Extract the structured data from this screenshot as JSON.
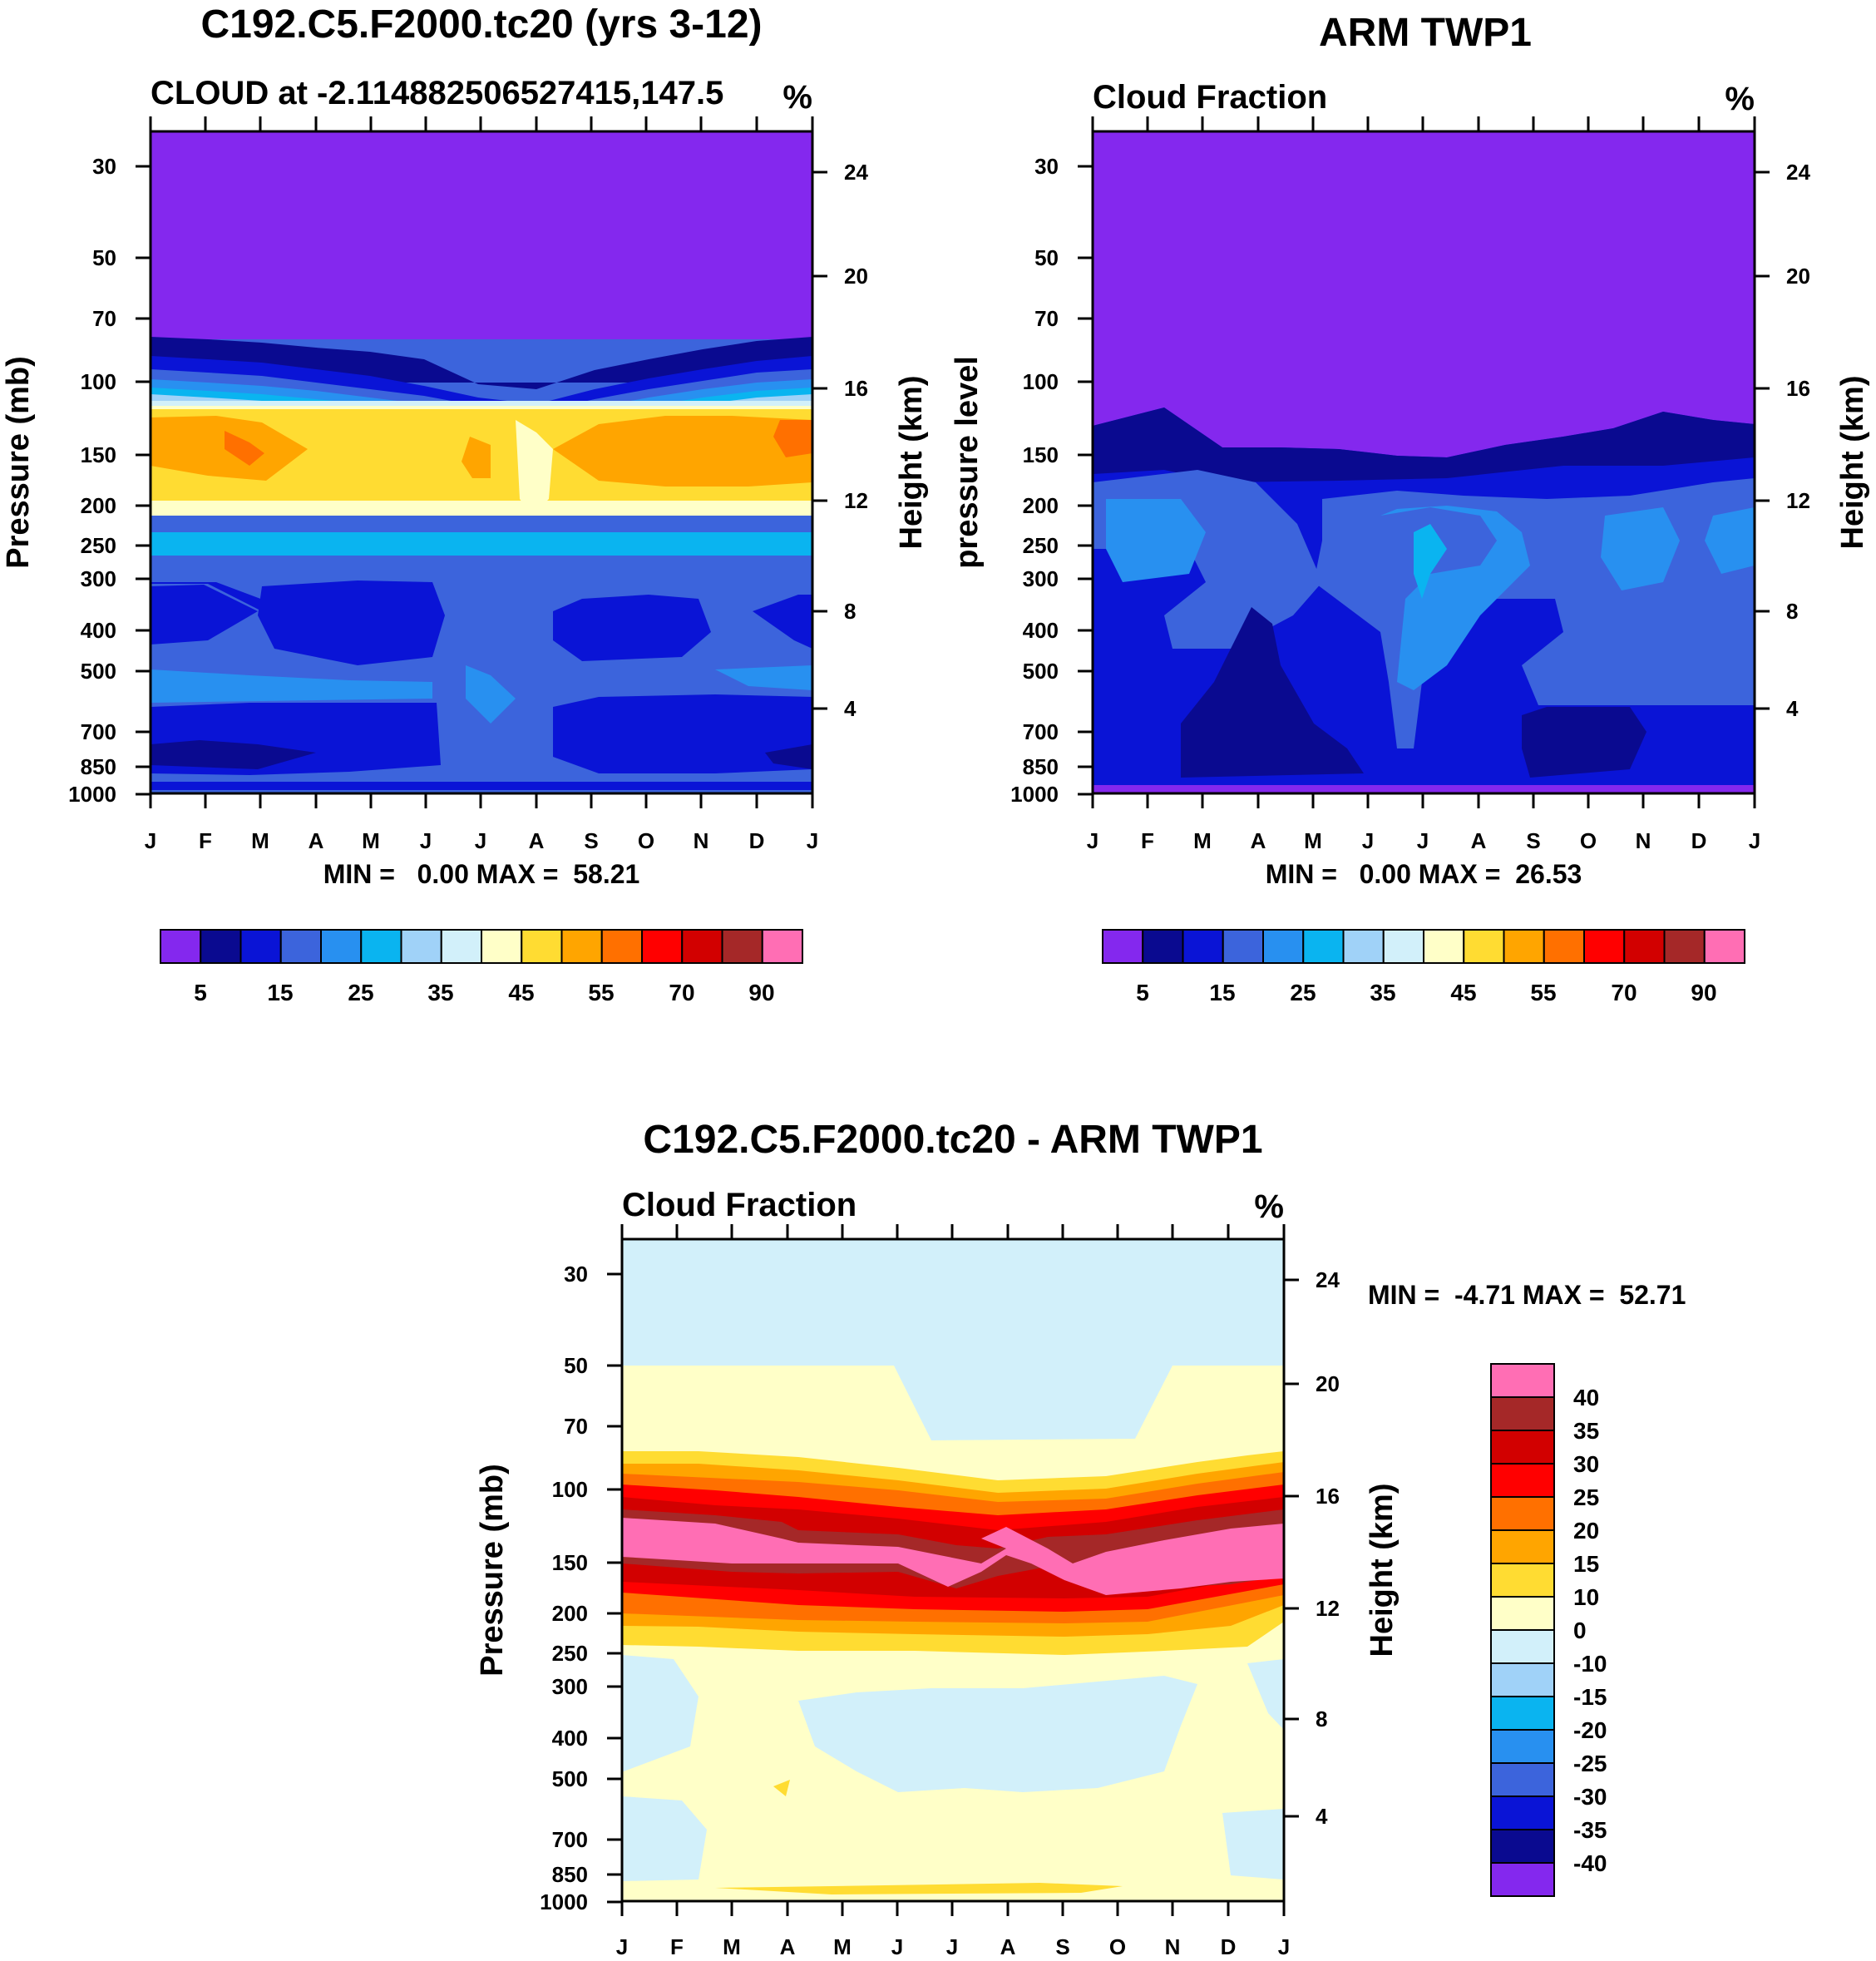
{
  "panels": [
    {
      "title": "C192.C5.F2000.tc20 (yrs 3-12)",
      "left_label": "CLOUD at -2.114882506527415,147.5",
      "right_label": "%",
      "ylabel_left": "Pressure (mb)",
      "ylabel_right": "Height (km)",
      "minmax": "MIN =   0.00 MAX =  58.21"
    },
    {
      "title": "ARM TWP1",
      "left_label": "Cloud Fraction",
      "right_label": "%",
      "ylabel_left": "pressure level",
      "ylabel_right": "Height (km)",
      "minmax": "MIN =   0.00 MAX =  26.53"
    },
    {
      "title": "C192.C5.F2000.tc20 - ARM TWP1",
      "left_label": "Cloud Fraction",
      "right_label": "%",
      "ylabel_left": "Pressure (mb)",
      "ylabel_right": "Height (km)",
      "minmax": "MIN =  -4.71 MAX =  52.71"
    }
  ],
  "colorbars": {
    "abs": {
      "labels": [
        "5",
        "15",
        "25",
        "35",
        "45",
        "55",
        "70",
        "90"
      ],
      "colors": [
        "#8428EE",
        "#0A0A90",
        "#0A14D6",
        "#3C64DC",
        "#2890F0",
        "#0AB4F0",
        "#A0D2F8",
        "#D2F0FA",
        "#FFFFC8",
        "#FFDC32",
        "#FFA500",
        "#FF7000",
        "#FF0000",
        "#D20000",
        "#A52828",
        "#FF6EB4"
      ]
    },
    "diff": {
      "labels": [
        "40",
        "35",
        "30",
        "25",
        "20",
        "15",
        "10",
        "0",
        "-10",
        "-15",
        "-20",
        "-25",
        "-30",
        "-35",
        "-40"
      ],
      "colors_top_to_bottom": [
        "#FF6EB4",
        "#A52828",
        "#D20000",
        "#FF0000",
        "#FF7000",
        "#FFA500",
        "#FFDC32",
        "#FFFFC8",
        "#D2F0FA",
        "#A0D2F8",
        "#0AB4F0",
        "#2890F0",
        "#3C64DC",
        "#0A14D6",
        "#0A0A90",
        "#8428EE"
      ]
    }
  },
  "chart_data": [
    {
      "type": "contour",
      "title": "C192.C5.F2000.tc20 (yrs 3-12)",
      "variable": "CLOUD at -2.114882506527415,147.5",
      "units": "%",
      "x": [
        "J",
        "F",
        "M",
        "A",
        "M",
        "J",
        "J",
        "A",
        "S",
        "O",
        "N",
        "D",
        "J"
      ],
      "pressure_ticks": [
        "30",
        "50",
        "70",
        "100",
        "150",
        "200",
        "250",
        "300",
        "400",
        "500",
        "700",
        "850",
        "1000"
      ],
      "height_ticks": [
        "24",
        "20",
        "16",
        "12",
        "8",
        "4"
      ],
      "ylabel": "Pressure (mb)",
      "y2label": "Height (km)",
      "min": 0.0,
      "max": 58.21,
      "features": {
        "cloud_top_pressure_mb": [
          80,
          82,
          85,
          90,
          95,
          104,
          108,
          112,
          100,
          94,
          88,
          84,
          80
        ],
        "anvil_peak_pressure_mb": 150,
        "anvil_peak_range_pct": "45-60"
      }
    },
    {
      "type": "contour",
      "title": "ARM TWP1",
      "variable": "Cloud Fraction",
      "units": "%",
      "x": [
        "J",
        "F",
        "M",
        "A",
        "M",
        "J",
        "J",
        "A",
        "S",
        "O",
        "N",
        "D",
        "J"
      ],
      "pressure_ticks": [
        "30",
        "50",
        "70",
        "100",
        "150",
        "200",
        "250",
        "300",
        "400",
        "500",
        "700",
        "850",
        "1000"
      ],
      "height_ticks": [
        "24",
        "20",
        "16",
        "12",
        "8",
        "4"
      ],
      "ylabel": "pressure level",
      "y2label": "Height (km)",
      "min": 0.0,
      "max": 26.53,
      "features": {
        "cloud_top_pressure_mb": [
          135,
          125,
          128,
          130,
          135,
          140,
          145,
          150,
          140,
          132,
          128,
          118,
          135
        ],
        "max_range_pct": "20-30"
      }
    },
    {
      "type": "contour",
      "title": "C192.C5.F2000.tc20 - ARM TWP1",
      "variable": "Cloud Fraction",
      "units": "%",
      "x": [
        "J",
        "F",
        "M",
        "A",
        "M",
        "J",
        "J",
        "A",
        "S",
        "O",
        "N",
        "D",
        "J"
      ],
      "pressure_ticks": [
        "30",
        "50",
        "70",
        "100",
        "150",
        "200",
        "250",
        "300",
        "400",
        "500",
        "700",
        "850",
        "1000"
      ],
      "height_ticks": [
        "24",
        "20",
        "16",
        "12",
        "8",
        "4"
      ],
      "ylabel": "Pressure (mb)",
      "y2label": "Height (km)",
      "min": -4.71,
      "max": 52.71,
      "features": {
        "positive_bias_band_pressure_mb": [
          100,
          200
        ],
        "peak_pressure_mb": 150,
        "peak_range_pct": ">40"
      }
    }
  ]
}
